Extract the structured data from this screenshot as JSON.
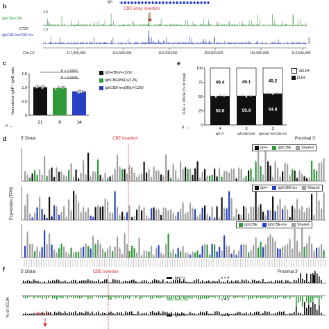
{
  "panel_b": {
    "letter": "b",
    "gene_label": "Igh",
    "annotation": "CBE array insertion",
    "track1_label": "IghCBE/CBE",
    "track1_scale": "1.5",
    "ctcf_label": "CTCF",
    "track2_label": "IghCBE-inv/CBE-inv",
    "track2_scale": "1.5",
    "rpm_label": "RPM",
    "chr_label": "Chr.12:",
    "chr_ticks": [
      "117,000,000",
      "116,500,000",
      "116,000,000",
      "115,500,000",
      "115,000,000",
      "114,500,000"
    ],
    "colors": {
      "track1": "#3a9a43",
      "track2": "#2a3fbf",
      "annotation": "#cc2a2a"
    }
  },
  "panel_c": {
    "letter": "c",
    "ylabel": "Normalized IghP / IghB ratio",
    "yticks": [
      "0",
      "0.5",
      "1.0",
      "1.5"
    ],
    "pvals": [
      "P < 0.0001",
      "P < 0.0001"
    ],
    "n_arrow": "n →",
    "legend": [
      {
        "label": "Igh+(B6)/+(129)",
        "color": "#111111"
      },
      {
        "label": "IghCBE(B6)/+(129)",
        "color": "#2e9a3a"
      },
      {
        "label": "IghCBE-inv(B6)/+(129)",
        "color": "#2740c4"
      }
    ]
  },
  "panel_e": {
    "letter": "e",
    "ylabel": "DJH + VDJH (% of total)",
    "yticks": [
      "0",
      "25",
      "50",
      "75",
      "100"
    ],
    "legend": [
      "VDJH",
      "DJH"
    ],
    "n_arrow": "n →"
  },
  "panel_d": {
    "letter": "d",
    "left_label": "5′ Distal",
    "annotation": "CBE insertion",
    "right_label": "Proximal 3′",
    "ylabel": "Expression (TPM)",
    "legends": [
      [
        {
          "label": "Igh+",
          "color": "#111111"
        },
        {
          "label": "IghCBE",
          "color": "#2e9a3a"
        },
        {
          "label": "Shared",
          "color": "#a0a0a0"
        }
      ],
      [
        {
          "label": "Igh+",
          "color": "#111111"
        },
        {
          "label": "IghCBE-inv",
          "color": "#2740c4"
        },
        {
          "label": "Shared",
          "color": "#a0a0a0"
        }
      ],
      [
        {
          "label": "IghCBE",
          "color": "#2e9a3a"
        },
        {
          "label": "IghCBE-inv",
          "color": "#2740c4"
        },
        {
          "label": "Shared",
          "color": "#a0a0a0"
        }
      ]
    ]
  },
  "panel_f": {
    "letter": "f",
    "left_label": "5′ Distal",
    "annotation": "CBE insertion",
    "right_label": "Proximal 3′",
    "ylabel": "% of VDJH",
    "rows": [
      {
        "legend": "Igh+/+",
        "n": "n = 4",
        "color": "#111111"
      },
      {
        "legend": "IghCBE/CBE",
        "n": "n = 3",
        "color": "#2e9a3a"
      },
      {
        "legend": "Igh+/+",
        "n": "n = 4",
        "color": "#111111"
      }
    ],
    "vh_label": "VH1-61"
  },
  "chart_data": [
    {
      "type": "bar",
      "id": "c",
      "categories": [
        "Igh+(B6)/+(129)",
        "IghCBE(B6)/+(129)",
        "IghCBE-inv(B6)/+(129)"
      ],
      "values": [
        1.01,
        0.98,
        0.86
      ],
      "n": [
        "21",
        "8",
        "14"
      ],
      "ylim": [
        0,
        1.5
      ],
      "ylabel": "Normalized IghP / IghB ratio"
    },
    {
      "type": "bar",
      "id": "e",
      "categories": [
        "Igh+/+",
        "IghCBE/CBE",
        "IghCBE-inv/CBE-inv"
      ],
      "series": [
        {
          "name": "DJH",
          "values": [
            50.6,
            50.9,
            54.8
          ]
        },
        {
          "name": "VDJH",
          "values": [
            49.4,
            49.1,
            45.2
          ]
        }
      ],
      "n": [
        "4",
        "3",
        "3"
      ],
      "ylim": [
        0,
        100
      ],
      "ylabel": "DJH + VDJH (% of total)"
    }
  ]
}
